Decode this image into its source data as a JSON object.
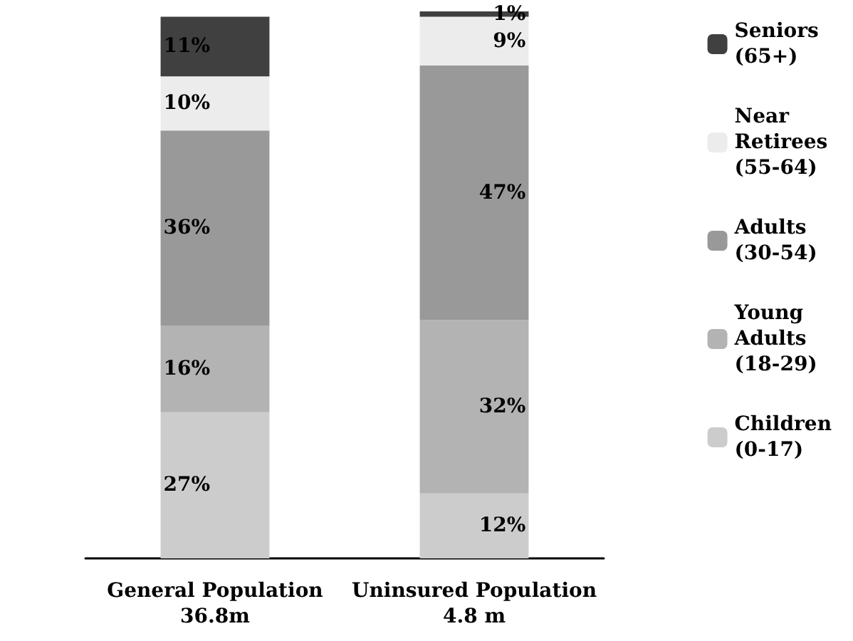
{
  "chart_data": {
    "type": "bar",
    "stacked": true,
    "categories": [
      "General Population\n36.8m",
      "Uninsured Population\n4.8 m"
    ],
    "legend": "right",
    "series": [
      {
        "name": "Children\n(0-17)",
        "color": "#cccccc",
        "values": [
          27,
          12
        ],
        "value_labels": [
          "27%",
          "12%"
        ]
      },
      {
        "name": "Young\nAdults\n(18-29)",
        "color": "#b3b3b3",
        "values": [
          16,
          32
        ],
        "value_labels": [
          "16%",
          "32%"
        ]
      },
      {
        "name": "Adults\n(30-54)",
        "color": "#999999",
        "values": [
          36,
          47
        ],
        "value_labels": [
          "36%",
          "47%"
        ]
      },
      {
        "name": "Near\nRetirees\n(55-64)",
        "color": "#ececec",
        "values": [
          10,
          9
        ],
        "value_labels": [
          "10%",
          "9%"
        ]
      },
      {
        "name": "Seniors\n(65+)",
        "color": "#404040",
        "values": [
          11,
          1
        ],
        "value_labels": [
          "11%",
          "1%"
        ]
      }
    ]
  }
}
